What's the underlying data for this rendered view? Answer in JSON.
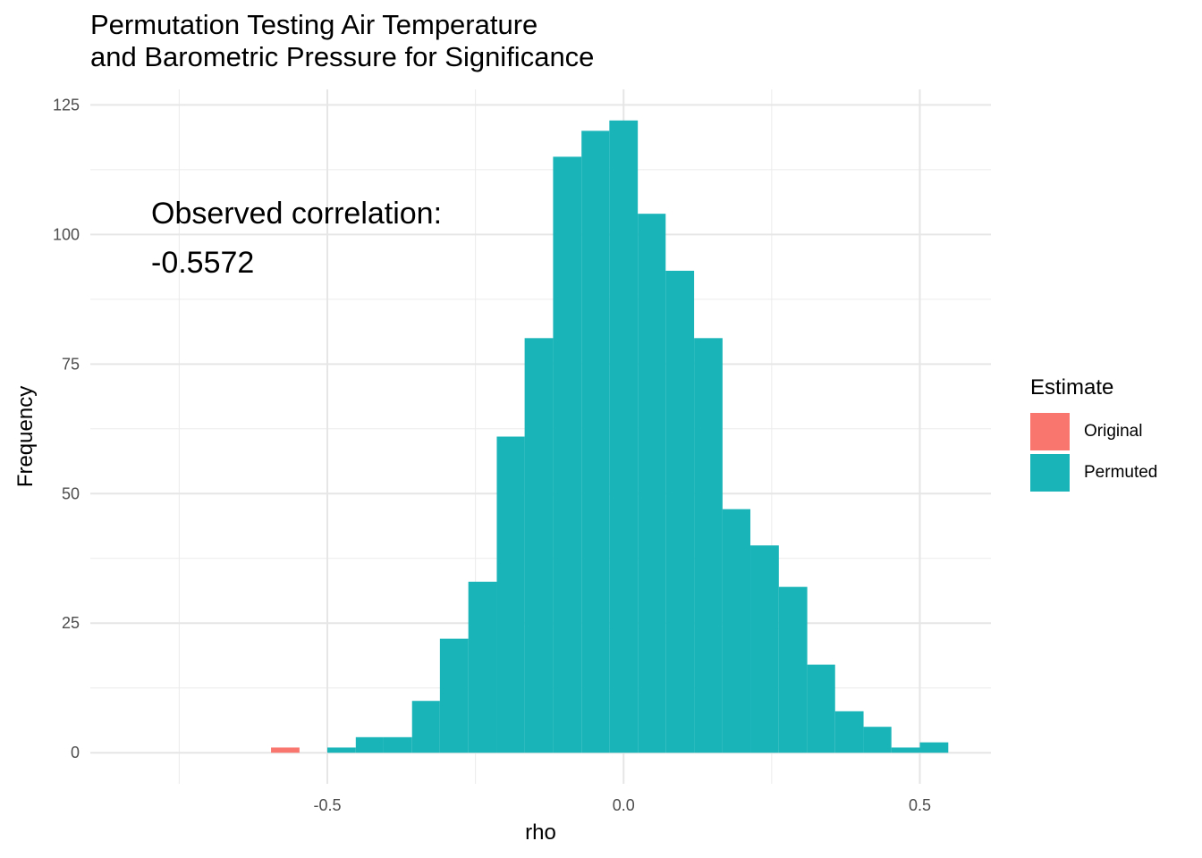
{
  "chart_data": {
    "type": "bar",
    "title_lines": [
      "Permutation Testing Air Temperature",
      "and Barometric Pressure for Significance"
    ],
    "xlabel": "rho",
    "ylabel": "Frequency",
    "xlim": [
      -0.9,
      0.62
    ],
    "ylim": [
      -6,
      128
    ],
    "x_ticks": [
      -0.5,
      0.0,
      0.5
    ],
    "x_tick_labels": [
      "-0.5",
      "0.0",
      "0.5"
    ],
    "y_ticks": [
      0,
      25,
      50,
      75,
      100,
      125
    ],
    "y_tick_labels": [
      "0",
      "25",
      "50",
      "75",
      "100",
      "125"
    ],
    "grid": true,
    "legend": {
      "title": "Estimate",
      "placement": "right",
      "entries": [
        {
          "label": "Original",
          "color": "#F8766D"
        },
        {
          "label": "Permuted",
          "color": "#19B4B8"
        }
      ]
    },
    "annotation_lines": [
      "Observed correlation:",
      "-0.5572"
    ],
    "series": [
      {
        "name": "Original",
        "color": "#F8766D",
        "bins": [
          {
            "x0": -0.595,
            "x1": -0.547,
            "count": 1
          }
        ]
      },
      {
        "name": "Permuted",
        "color": "#19B4B8",
        "bins": [
          {
            "x0": -0.5,
            "x1": -0.452,
            "count": 1
          },
          {
            "x0": -0.452,
            "x1": -0.405,
            "count": 3
          },
          {
            "x0": -0.405,
            "x1": -0.357,
            "count": 3
          },
          {
            "x0": -0.357,
            "x1": -0.31,
            "count": 10
          },
          {
            "x0": -0.31,
            "x1": -0.262,
            "count": 22
          },
          {
            "x0": -0.262,
            "x1": -0.214,
            "count": 33
          },
          {
            "x0": -0.214,
            "x1": -0.167,
            "count": 61
          },
          {
            "x0": -0.167,
            "x1": -0.119,
            "count": 80
          },
          {
            "x0": -0.119,
            "x1": -0.071,
            "count": 115
          },
          {
            "x0": -0.071,
            "x1": -0.024,
            "count": 120
          },
          {
            "x0": -0.024,
            "x1": 0.024,
            "count": 122
          },
          {
            "x0": 0.024,
            "x1": 0.071,
            "count": 104
          },
          {
            "x0": 0.071,
            "x1": 0.119,
            "count": 93
          },
          {
            "x0": 0.119,
            "x1": 0.167,
            "count": 80
          },
          {
            "x0": 0.167,
            "x1": 0.214,
            "count": 47
          },
          {
            "x0": 0.214,
            "x1": 0.262,
            "count": 40
          },
          {
            "x0": 0.262,
            "x1": 0.31,
            "count": 32
          },
          {
            "x0": 0.31,
            "x1": 0.357,
            "count": 17
          },
          {
            "x0": 0.357,
            "x1": 0.405,
            "count": 8
          },
          {
            "x0": 0.405,
            "x1": 0.452,
            "count": 5
          },
          {
            "x0": 0.452,
            "x1": 0.5,
            "count": 1
          },
          {
            "x0": 0.5,
            "x1": 0.548,
            "count": 2
          }
        ]
      }
    ]
  }
}
